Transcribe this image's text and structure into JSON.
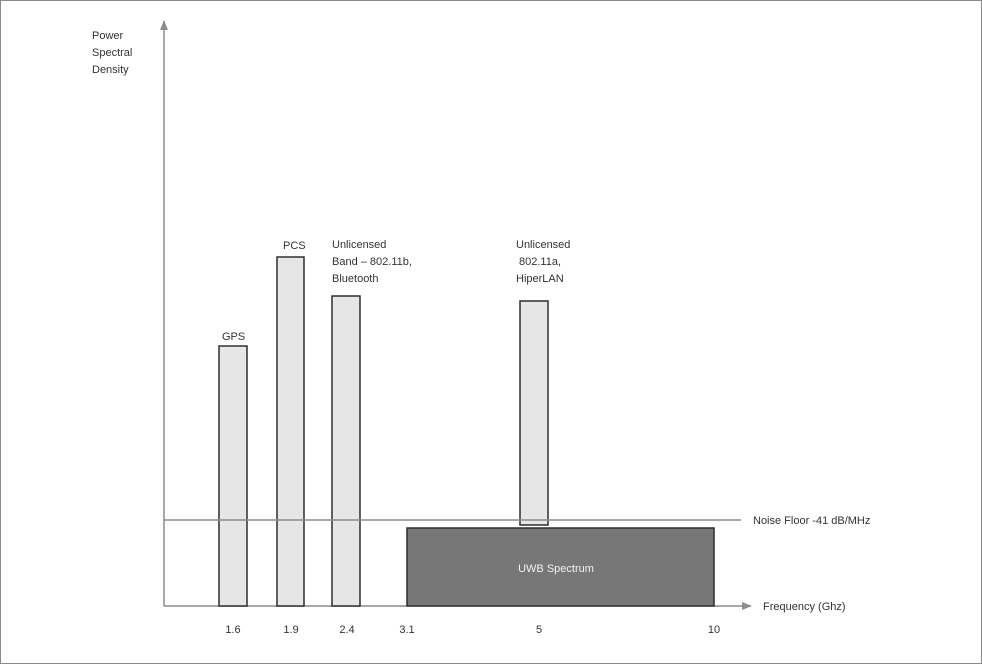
{
  "diagram": {
    "y_axis_title": [
      "Power",
      "Spectral",
      "Density"
    ],
    "x_axis_title": "Frequency (Ghz)",
    "noise_floor_label": "Noise Floor -41 dB/MHz",
    "uwb_label": "UWB Spectrum",
    "ticks": [
      "1.6",
      "1.9",
      "2.4",
      "3.1",
      "5",
      "10"
    ],
    "bars": [
      {
        "id": "gps",
        "freq": "1.6",
        "label": [
          "GPS"
        ]
      },
      {
        "id": "pcs",
        "freq": "1.9",
        "label": [
          "PCS"
        ]
      },
      {
        "id": "band-24",
        "freq": "2.4",
        "label": [
          "Unlicensed",
          "Band – 802.11b,",
          "Bluetooth"
        ]
      },
      {
        "id": "band-5",
        "freq": "5",
        "label": [
          "Unlicensed",
          "802.11a,",
          "HiperLAN"
        ]
      }
    ],
    "colors": {
      "axis": "#8c8c8c",
      "bar_fill": "#e6e6e6",
      "bar_stroke": "#2e2e2e",
      "uwb_fill": "#777777",
      "text": "#333333"
    }
  }
}
